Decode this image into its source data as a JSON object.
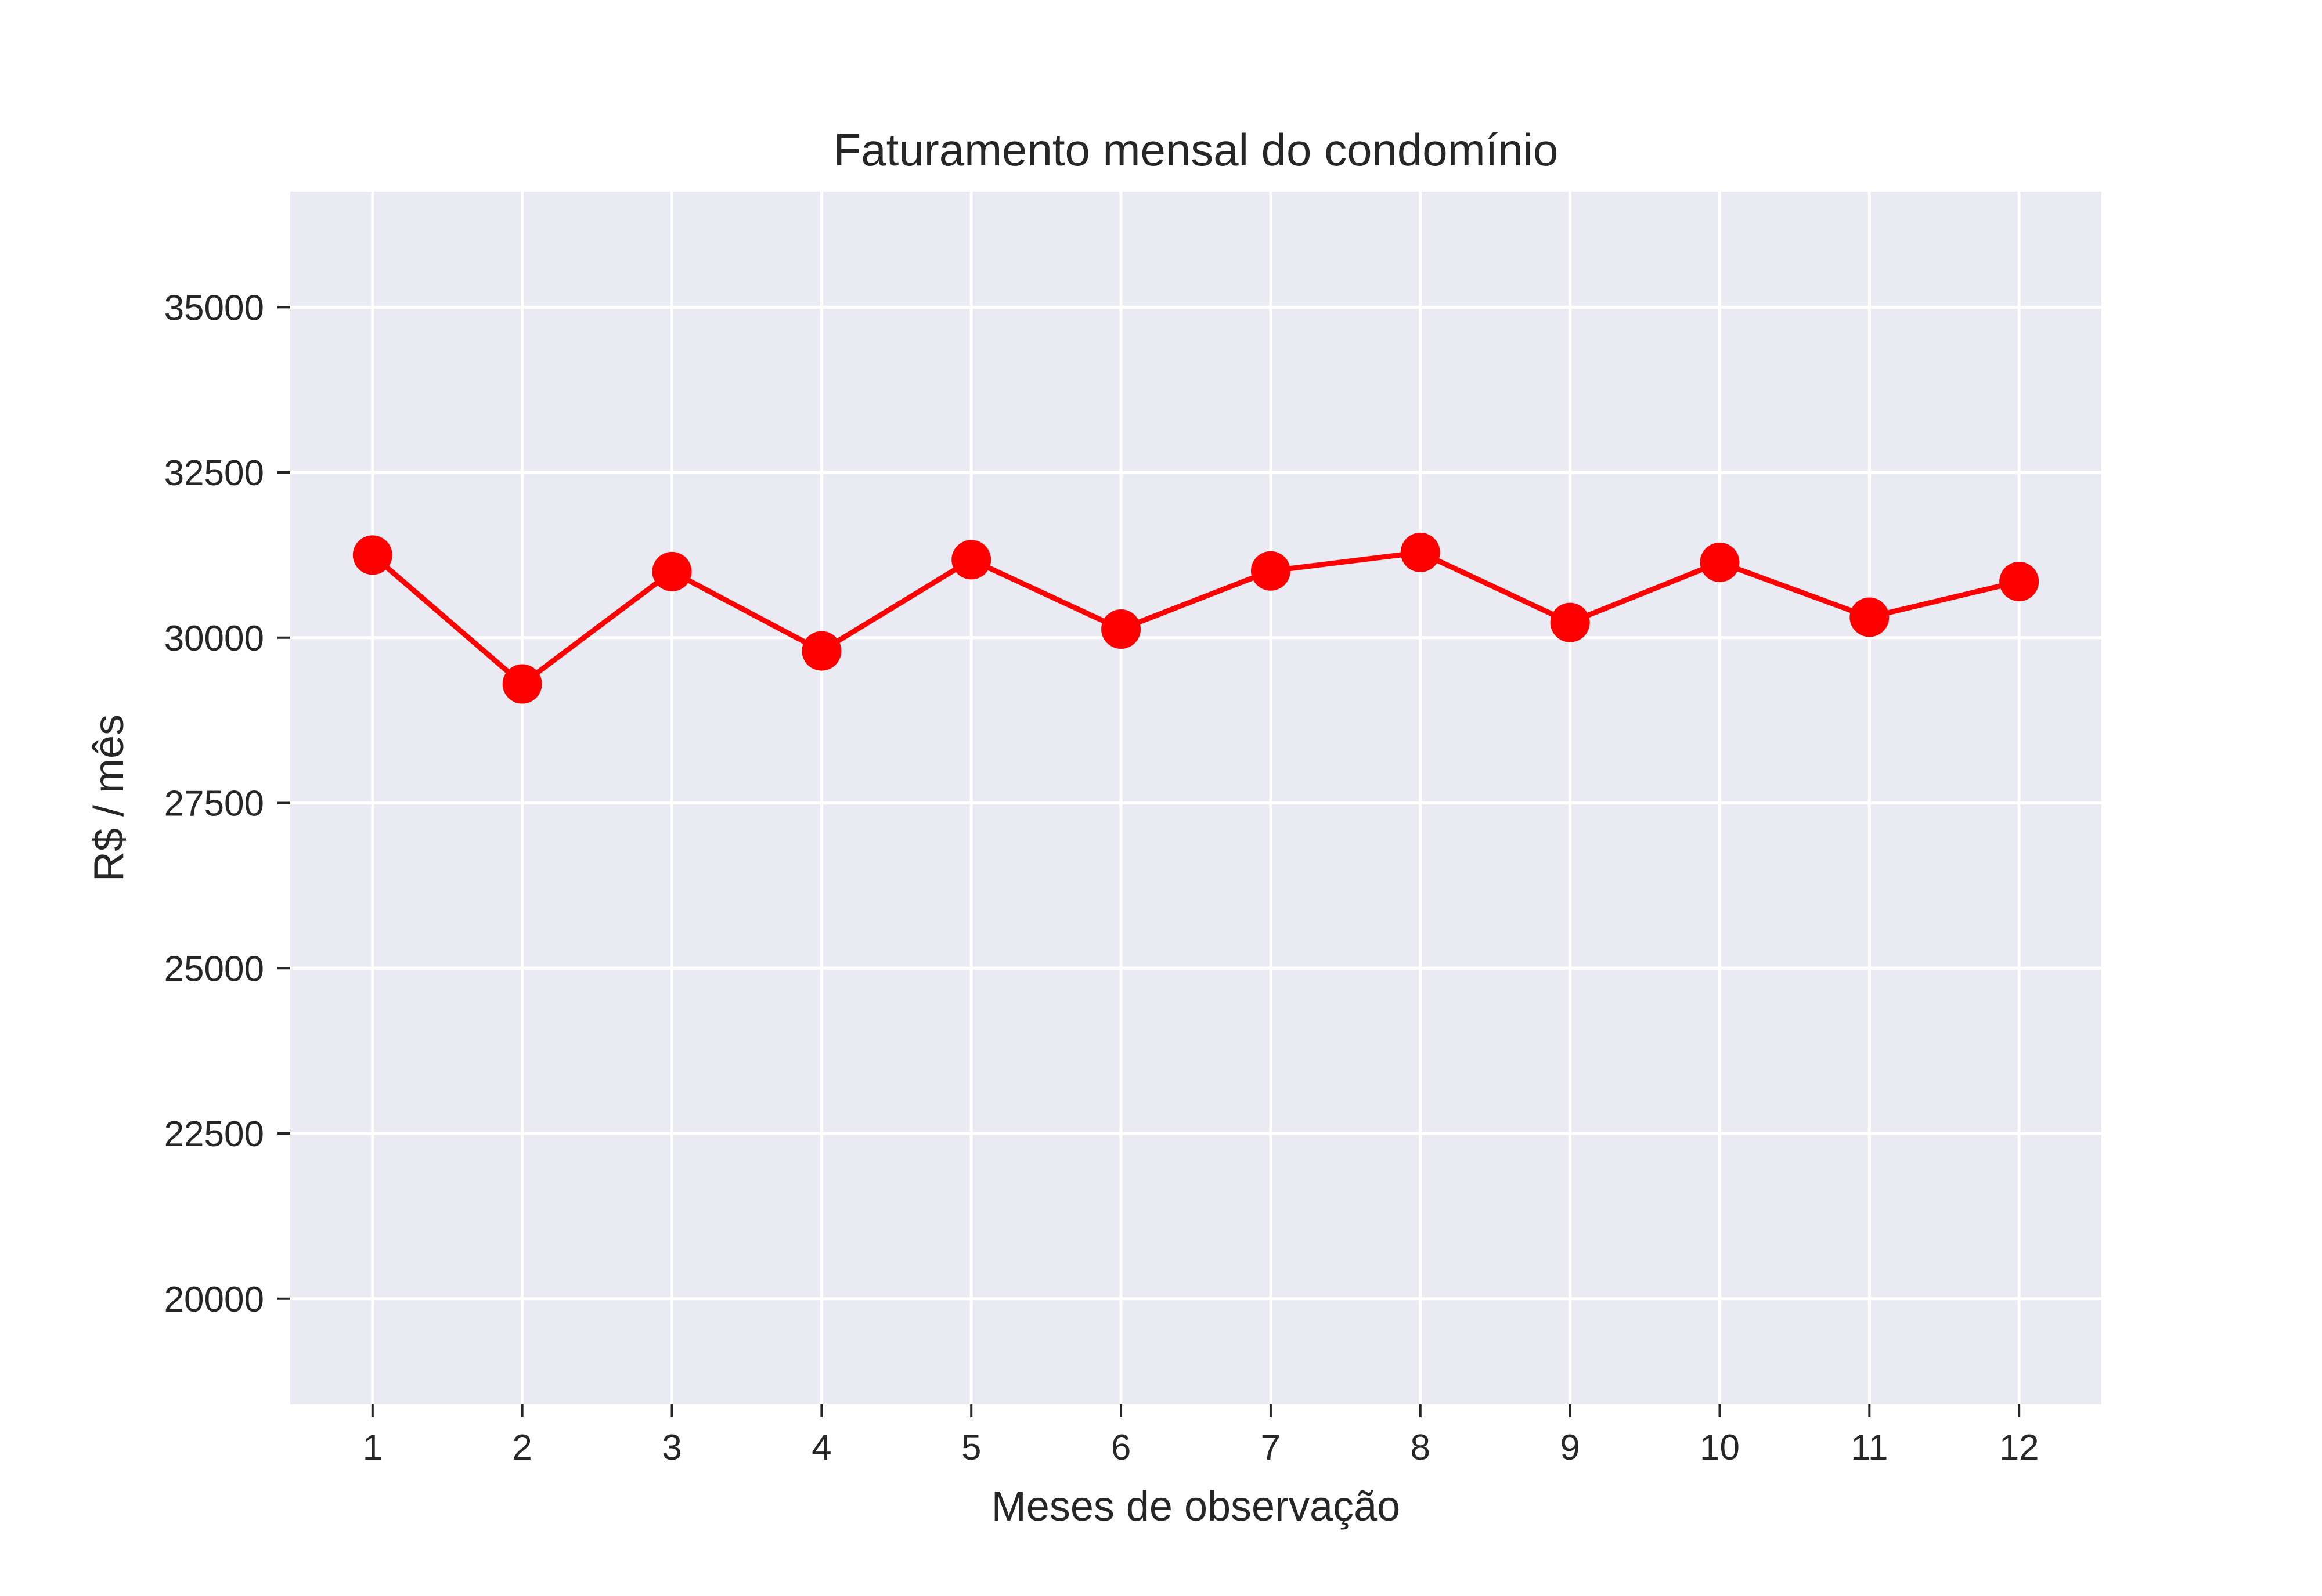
{
  "chart_data": {
    "type": "line",
    "title": "Faturamento mensal do condomínio",
    "xlabel": "Meses de observação",
    "ylabel": "R$ / mês",
    "x": [
      1,
      2,
      3,
      4,
      5,
      6,
      7,
      8,
      9,
      10,
      11,
      12
    ],
    "series": [
      {
        "values": [
          31250,
          29300,
          31000,
          29800,
          31180,
          30130,
          31010,
          31290,
          30230,
          31140,
          30310,
          30850
        ],
        "color": "#ff0000",
        "marker": "circle"
      }
    ],
    "xticks": [
      "1",
      "2",
      "3",
      "4",
      "5",
      "6",
      "7",
      "8",
      "9",
      "10",
      "11",
      "12"
    ],
    "yticks": [
      20000,
      22500,
      25000,
      27500,
      30000,
      32500,
      35000
    ],
    "xlim": [
      0.45,
      12.55
    ],
    "ylim": [
      18400,
      36750
    ],
    "grid": true,
    "plot_background": "#eaeaf2"
  }
}
